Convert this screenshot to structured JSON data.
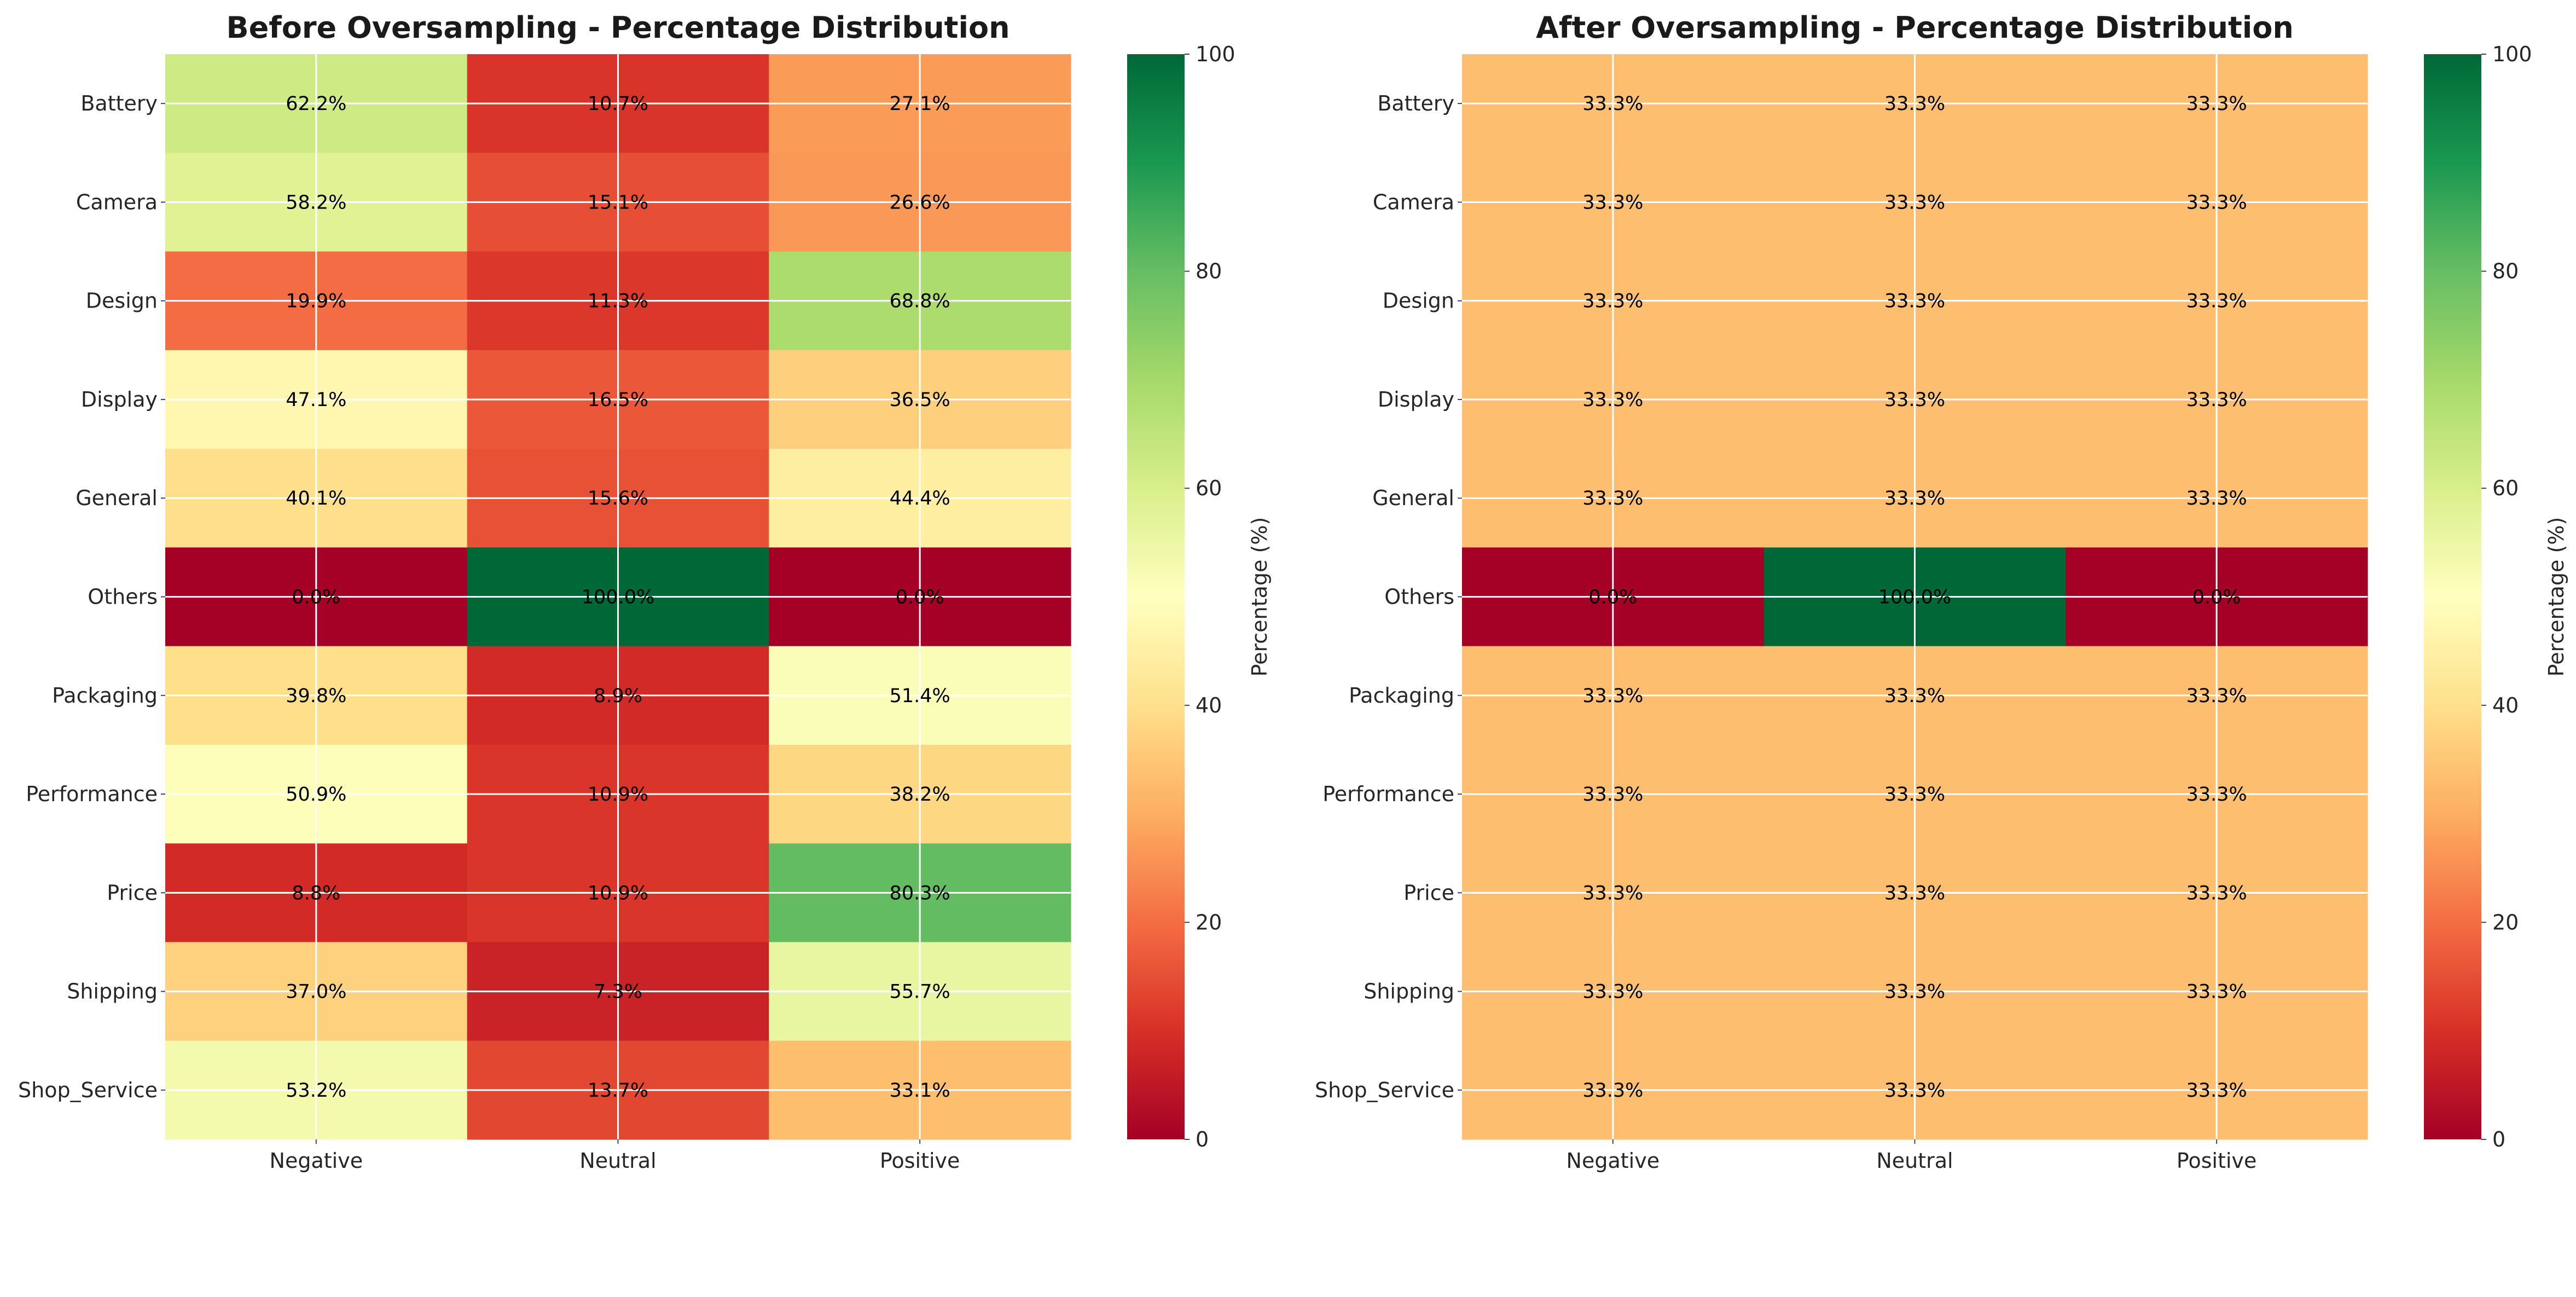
{
  "chart_data": [
    {
      "type": "heatmap",
      "title": "Before Oversampling - Percentage Distribution",
      "xlabel": "",
      "ylabel": "",
      "columns": [
        "Negative",
        "Neutral",
        "Positive"
      ],
      "rows": [
        "Battery",
        "Camera",
        "Design",
        "Display",
        "General",
        "Others",
        "Packaging",
        "Performance",
        "Price",
        "Shipping",
        "Shop_Service"
      ],
      "values": [
        [
          62.2,
          10.7,
          27.1
        ],
        [
          58.2,
          15.1,
          26.6
        ],
        [
          19.9,
          11.3,
          68.8
        ],
        [
          47.1,
          16.5,
          36.5
        ],
        [
          40.1,
          15.6,
          44.4
        ],
        [
          0.0,
          100.0,
          0.0
        ],
        [
          39.8,
          8.9,
          51.4
        ],
        [
          50.9,
          10.9,
          38.2
        ],
        [
          8.8,
          10.9,
          80.3
        ],
        [
          37.0,
          7.3,
          55.7
        ],
        [
          53.2,
          13.7,
          33.1
        ]
      ],
      "cell_labels": [
        [
          "62.2%",
          "10.7%",
          "27.1%"
        ],
        [
          "58.2%",
          "15.1%",
          "26.6%"
        ],
        [
          "19.9%",
          "11.3%",
          "68.8%"
        ],
        [
          "47.1%",
          "16.5%",
          "36.5%"
        ],
        [
          "40.1%",
          "15.6%",
          "44.4%"
        ],
        [
          "0.0%",
          "100.0%",
          "0.0%"
        ],
        [
          "39.8%",
          "8.9%",
          "51.4%"
        ],
        [
          "50.9%",
          "10.9%",
          "38.2%"
        ],
        [
          "8.8%",
          "10.9%",
          "80.3%"
        ],
        [
          "37.0%",
          "7.3%",
          "55.7%"
        ],
        [
          "53.2%",
          "13.7%",
          "33.1%"
        ]
      ],
      "colorbar": {
        "label": "Percentage (%)",
        "range": [
          0,
          100
        ],
        "ticks": [
          "0",
          "20",
          "40",
          "60",
          "80",
          "100"
        ],
        "colormap": "RdYlGn"
      },
      "grid": true
    },
    {
      "type": "heatmap",
      "title": "After Oversampling - Percentage Distribution",
      "xlabel": "",
      "ylabel": "",
      "columns": [
        "Negative",
        "Neutral",
        "Positive"
      ],
      "rows": [
        "Battery",
        "Camera",
        "Design",
        "Display",
        "General",
        "Others",
        "Packaging",
        "Performance",
        "Price",
        "Shipping",
        "Shop_Service"
      ],
      "values": [
        [
          33.3,
          33.3,
          33.3
        ],
        [
          33.3,
          33.3,
          33.3
        ],
        [
          33.3,
          33.3,
          33.3
        ],
        [
          33.3,
          33.3,
          33.3
        ],
        [
          33.3,
          33.3,
          33.3
        ],
        [
          0.0,
          100.0,
          0.0
        ],
        [
          33.3,
          33.3,
          33.3
        ],
        [
          33.3,
          33.3,
          33.3
        ],
        [
          33.3,
          33.3,
          33.3
        ],
        [
          33.3,
          33.3,
          33.3
        ],
        [
          33.3,
          33.3,
          33.3
        ]
      ],
      "cell_labels": [
        [
          "33.3%",
          "33.3%",
          "33.3%"
        ],
        [
          "33.3%",
          "33.3%",
          "33.3%"
        ],
        [
          "33.3%",
          "33.3%",
          "33.3%"
        ],
        [
          "33.3%",
          "33.3%",
          "33.3%"
        ],
        [
          "33.3%",
          "33.3%",
          "33.3%"
        ],
        [
          "0.0%",
          "100.0%",
          "0.0%"
        ],
        [
          "33.3%",
          "33.3%",
          "33.3%"
        ],
        [
          "33.3%",
          "33.3%",
          "33.3%"
        ],
        [
          "33.3%",
          "33.3%",
          "33.3%"
        ],
        [
          "33.3%",
          "33.3%",
          "33.3%"
        ],
        [
          "33.3%",
          "33.3%",
          "33.3%"
        ]
      ],
      "colorbar": {
        "label": "Percentage (%)",
        "range": [
          0,
          100
        ],
        "ticks": [
          "0",
          "20",
          "40",
          "60",
          "80",
          "100"
        ],
        "colormap": "RdYlGn"
      },
      "grid": true
    }
  ]
}
